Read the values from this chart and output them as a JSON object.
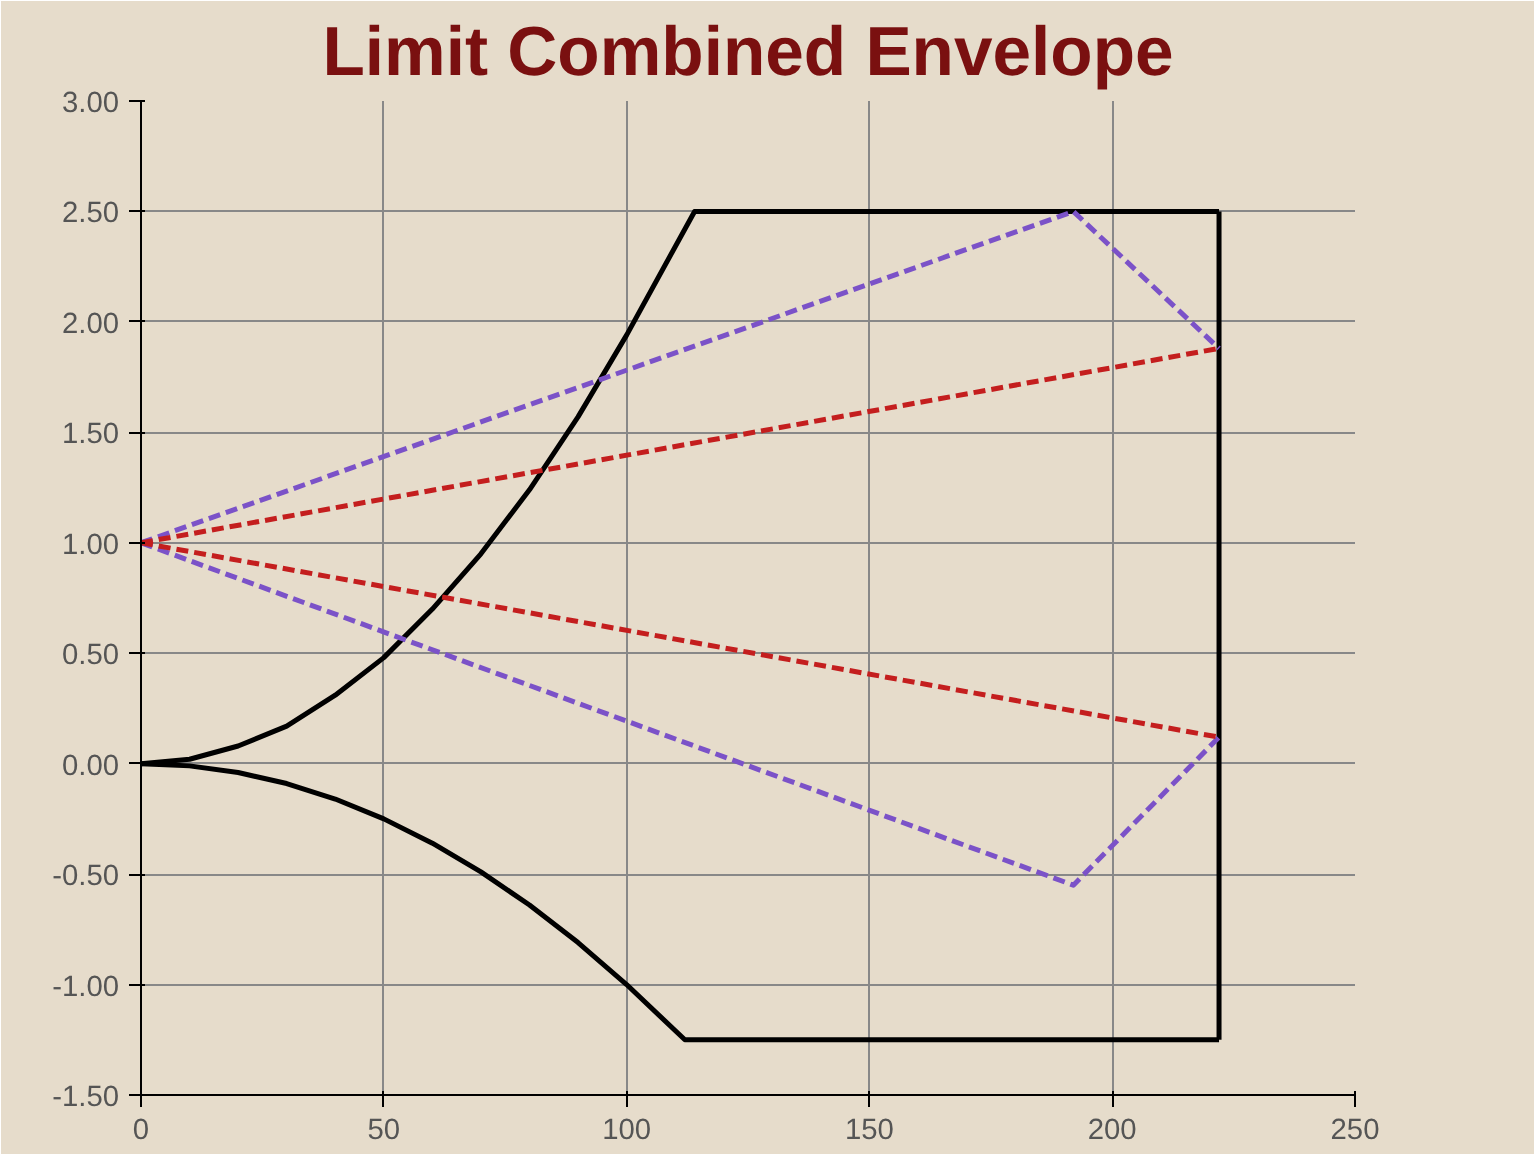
{
  "chart_data": {
    "type": "line",
    "title": "Limit Combined Envelope",
    "xlim": [
      0,
      250
    ],
    "ylim": [
      -1.5,
      3.0
    ],
    "xticks": [
      0,
      50,
      100,
      150,
      200,
      250
    ],
    "yticks": [
      {
        "value": -1.5,
        "label": "-1.50"
      },
      {
        "value": -1.0,
        "label": "-1.00"
      },
      {
        "value": -0.5,
        "label": "-0.50"
      },
      {
        "value": 0,
        "label": "0.00"
      },
      {
        "value": 0.5,
        "label": "0.50"
      },
      {
        "value": 1.0,
        "label": "1.00"
      },
      {
        "value": 1.5,
        "label": "1.50"
      },
      {
        "value": 2.0,
        "label": "2.00"
      },
      {
        "value": 2.5,
        "label": "2.50"
      },
      {
        "value": 3.0,
        "label": "3.00"
      }
    ],
    "grid": true,
    "marker": "none",
    "series": [
      {
        "color": "#000000",
        "line_style": "solid",
        "x": [
          0,
          10,
          20,
          30,
          40,
          50,
          60,
          70,
          80,
          90,
          100,
          114,
          222
        ],
        "values": [
          0,
          0.02,
          0.08,
          0.17,
          0.31,
          0.48,
          0.7,
          0.95,
          1.24,
          1.57,
          1.94,
          2.5,
          2.5
        ]
      },
      {
        "color": "#000000",
        "line_style": "solid",
        "x": [
          0,
          10,
          20,
          30,
          40,
          50,
          60,
          70,
          80,
          90,
          100,
          112,
          222
        ],
        "values": [
          0,
          -0.01,
          -0.04,
          -0.09,
          -0.16,
          -0.25,
          -0.36,
          -0.49,
          -0.64,
          -0.81,
          -1.0,
          -1.25,
          -1.25
        ]
      },
      {
        "color": "#000000",
        "line_style": "solid",
        "x": [
          222,
          222
        ],
        "values": [
          -1.25,
          2.5
        ]
      },
      {
        "color": "#7b52c8",
        "line_style": "dashed",
        "x": [
          0,
          192,
          222
        ],
        "values": [
          1,
          2.5,
          1.88
        ]
      },
      {
        "color": "#7b52c8",
        "line_style": "dashed",
        "x": [
          0,
          192,
          222
        ],
        "values": [
          1,
          -0.55,
          0.12
        ]
      },
      {
        "color": "#c41e1e",
        "line_style": "dashed",
        "x": [
          0,
          222
        ],
        "values": [
          1,
          1.88
        ]
      },
      {
        "color": "#c41e1e",
        "line_style": "dashed",
        "x": [
          0,
          222
        ],
        "values": [
          1,
          0.12
        ]
      }
    ]
  }
}
